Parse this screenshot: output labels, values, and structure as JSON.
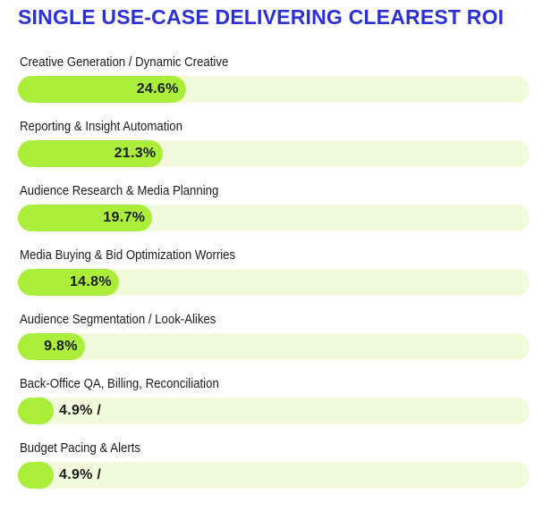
{
  "title": "SINGLE USE-CASE DELIVERING CLEAREST ROI",
  "colors": {
    "title": "#2a2fd6",
    "bar": "#aaee3a",
    "track": "#f1fbdb",
    "text": "#1c1c1c"
  },
  "chart_data": {
    "type": "bar",
    "orientation": "horizontal",
    "title": "SINGLE USE-CASE DELIVERING CLEAREST ROI",
    "categories": [
      "Creative Generation / Dynamic Creative",
      "Reporting & Insight Automation",
      "Audience Research & Media Planning",
      "Media Buying & Bid Optimization Worries",
      "Audience Segmentation / Look-Alikes",
      "Back-Office QA, Billing, Reconciliation",
      "Budget Pacing & Alerts"
    ],
    "values": [
      24.6,
      21.3,
      19.7,
      14.8,
      9.8,
      4.9,
      4.9
    ],
    "value_labels": [
      "24.6%",
      "21.3%",
      "19.7%",
      "14.8%",
      "9.8%",
      "4.9% /",
      "4.9% /"
    ],
    "xlim": [
      0,
      75
    ],
    "grid": false,
    "legend": "none"
  }
}
